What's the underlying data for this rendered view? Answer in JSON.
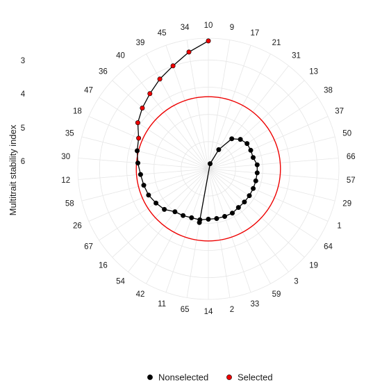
{
  "chart_data": {
    "type": "radar",
    "ylabel": "Multitrait stability index",
    "radial_ticks": [
      "3",
      "4",
      "5",
      "6"
    ],
    "categories": [
      "10",
      "9",
      "17",
      "21",
      "31",
      "13",
      "38",
      "37",
      "50",
      "66",
      "57",
      "29",
      "1",
      "64",
      "19",
      "3",
      "59",
      "33",
      "2",
      "14",
      "65",
      "11",
      "42",
      "54",
      "16",
      "67",
      "26",
      "58",
      "12",
      "30",
      "35",
      "18",
      "47",
      "36",
      "40",
      "39",
      "45",
      "34"
    ],
    "values": [
      6.7,
      0.0,
      2.2,
      2.8,
      3.4,
      3.6,
      3.7,
      3.7,
      3.7,
      3.8,
      3.8,
      3.8,
      3.8,
      3.8,
      3.8,
      3.8,
      3.85,
      3.85,
      3.85,
      3.85,
      3.9,
      3.9,
      3.95,
      4.0,
      4.2,
      4.3,
      4.4,
      4.45,
      4.5,
      4.6,
      4.7,
      4.8,
      5.1,
      5.3,
      5.5,
      5.75,
      6.0,
      6.35
    ],
    "selected": [
      true,
      false,
      false,
      false,
      false,
      false,
      false,
      false,
      false,
      false,
      false,
      false,
      false,
      false,
      false,
      false,
      false,
      false,
      false,
      false,
      false,
      false,
      false,
      false,
      false,
      false,
      false,
      false,
      false,
      false,
      false,
      true,
      true,
      true,
      true,
      true,
      true,
      true
    ],
    "threshold": 4.65,
    "rlim": [
      2.0,
      6.8
    ],
    "colors": {
      "nonselected": "#000000",
      "selected": "#ee0000",
      "threshold": "#ee0000",
      "grid": "#e6e6e6"
    },
    "legend": {
      "position": "bottom",
      "items": [
        {
          "label": "Nonselected",
          "color": "#000000"
        },
        {
          "label": "Selected",
          "color": "#ee0000"
        }
      ]
    }
  }
}
